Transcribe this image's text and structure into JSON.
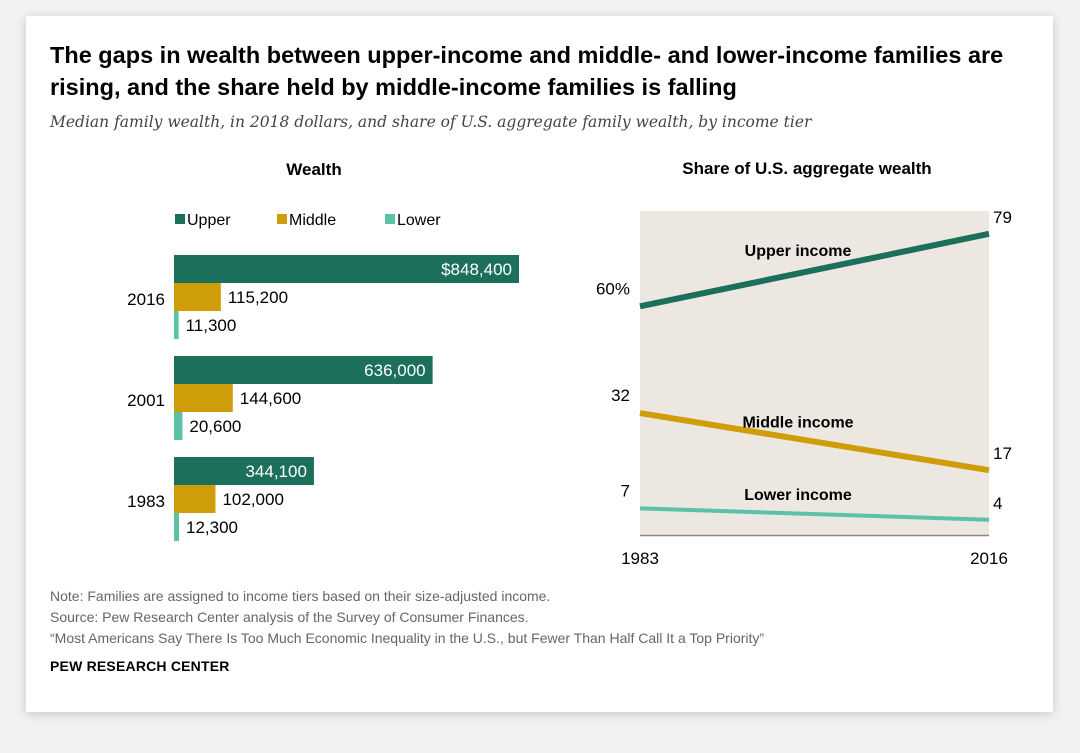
{
  "title": "The gaps in wealth between upper-income and middle- and lower-income families are rising, and the share held by middle-income families is falling",
  "subtitle": "Median family wealth, in 2018 dollars, and share of U.S. aggregate family wealth, by income tier",
  "colors": {
    "upper": "#1b6f5b",
    "middle": "#d09d0a",
    "lower": "#5bc2a8",
    "plot_bg": "#ece7e0",
    "axis": "#888888"
  },
  "chart_data": [
    {
      "type": "bar",
      "orientation": "horizontal",
      "title": "Wealth",
      "legend": [
        "Upper",
        "Middle",
        "Lower"
      ],
      "legend_placement": "top",
      "categories": [
        "2016",
        "2001",
        "1983"
      ],
      "series": [
        {
          "name": "Upper",
          "values": [
            848400,
            636000,
            344100
          ],
          "labels": [
            "$848,400",
            "636,000",
            "344,100"
          ]
        },
        {
          "name": "Middle",
          "values": [
            115200,
            144600,
            102000
          ],
          "labels": [
            "115,200",
            "144,600",
            "102,000"
          ]
        },
        {
          "name": "Lower",
          "values": [
            11300,
            20600,
            12300
          ],
          "labels": [
            "11,300",
            "20,600",
            "12,300"
          ]
        }
      ]
    },
    {
      "type": "line",
      "title": "Share of U.S. aggregate wealth",
      "x": [
        "1983",
        "2016"
      ],
      "ylim": [
        0,
        85
      ],
      "series": [
        {
          "name": "Upper income",
          "values": [
            60,
            79
          ],
          "start_label": "60%",
          "end_label": "79"
        },
        {
          "name": "Middle income",
          "values": [
            32,
            17
          ],
          "start_label": "32",
          "end_label": "17"
        },
        {
          "name": "Lower income",
          "values": [
            7,
            4
          ],
          "start_label": "7",
          "end_label": "4"
        }
      ]
    }
  ],
  "notes": [
    "Note: Families are assigned to income tiers based on their size-adjusted income.",
    "Source: Pew Research Center analysis of the Survey of Consumer Finances.",
    "“Most Americans Say There Is Too Much Economic Inequality in the U.S., but Fewer Than Half Call It a Top Priority”"
  ],
  "brand": "PEW RESEARCH CENTER"
}
